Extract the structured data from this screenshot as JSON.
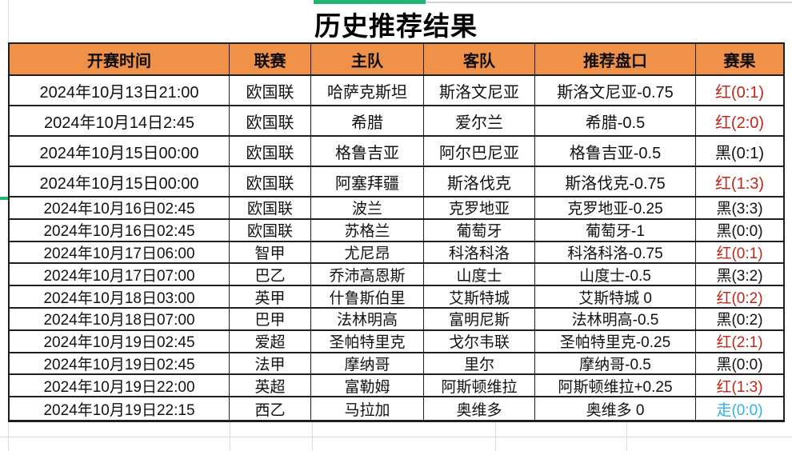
{
  "title": "历史推荐结果",
  "colors": {
    "header_bg": "#ef9148",
    "table_border": "#1f1f1f",
    "result_win_red": "#c0271b",
    "result_lose_black": "#111111",
    "result_push_blue": "#2fb0e6",
    "selection_green": "#22b573",
    "gridline_gray": "#dcdcdc"
  },
  "table": {
    "headers": [
      "开赛时间",
      "联赛",
      "主队",
      "客队",
      "推荐盘口",
      "赛果"
    ],
    "rows": [
      {
        "time": "2024年10月13日21:00",
        "league": "欧国联",
        "home": "哈萨克斯坦",
        "away": "斯洛文尼亚",
        "handicap": "斯洛文尼亚-0.75",
        "result": "红(0:1)",
        "result_color": "#c0271b"
      },
      {
        "time": "2024年10月14日2:45",
        "league": "欧国联",
        "home": "希腊",
        "away": "爱尔兰",
        "handicap": "希腊-0.5",
        "result": "红(2:0)",
        "result_color": "#c0271b"
      },
      {
        "time": "2024年10月15日00:00",
        "league": "欧国联",
        "home": "格鲁吉亚",
        "away": "阿尔巴尼亚",
        "handicap": "格鲁吉亚-0.5",
        "result": "黑(0:1)",
        "result_color": "#111111"
      },
      {
        "time": "2024年10月15日00:00",
        "league": "欧国联",
        "home": "阿塞拜疆",
        "away": "斯洛伐克",
        "handicap": "斯洛伐克-0.75",
        "result": "红(1:3)",
        "result_color": "#c0271b"
      },
      {
        "time": "2024年10月16日02:45",
        "league": "欧国联",
        "home": "波兰",
        "away": "克罗地亚",
        "handicap": "克罗地亚-0.25",
        "result": "黑(3:3)",
        "result_color": "#111111"
      },
      {
        "time": "2024年10月16日02:45",
        "league": "欧国联",
        "home": "苏格兰",
        "away": "葡萄牙",
        "handicap": "葡萄牙-1",
        "result": "黑(0:0)",
        "result_color": "#111111"
      },
      {
        "time": "2024年10月17日06:00",
        "league": "智甲",
        "home": "尤尼昂",
        "away": "科洛科洛",
        "handicap": "科洛科洛-0.75",
        "result": "红(0:1)",
        "result_color": "#c0271b"
      },
      {
        "time": "2024年10月17日07:00",
        "league": "巴乙",
        "home": "乔沛高恩斯",
        "away": "山度士",
        "handicap": "山度士-0.5",
        "result": "黑(3:2)",
        "result_color": "#111111"
      },
      {
        "time": "2024年10月18日03:00",
        "league": "英甲",
        "home": "什鲁斯伯里",
        "away": "艾斯特城",
        "handicap": "艾斯特城 0",
        "result": "红(0:2)",
        "result_color": "#c0271b"
      },
      {
        "time": "2024年10月18日07:00",
        "league": "巴甲",
        "home": "法林明高",
        "away": "富明尼斯",
        "handicap": "法林明高-0.5",
        "result": "黑(0:2)",
        "result_color": "#111111"
      },
      {
        "time": "2024年10月19日02:45",
        "league": "爱超",
        "home": "圣帕特里克",
        "away": "戈尔韦联",
        "handicap": "圣帕特里克-0.25",
        "result": "红(2:1)",
        "result_color": "#c0271b"
      },
      {
        "time": "2024年10月19日02:45",
        "league": "法甲",
        "home": "摩纳哥",
        "away": "里尔",
        "handicap": "摩纳哥-0.5",
        "result": "黑(0:0)",
        "result_color": "#111111"
      },
      {
        "time": "2024年10月19日22:00",
        "league": "英超",
        "home": "富勒姆",
        "away": "阿斯顿维拉",
        "handicap": "阿斯顿维拉+0.25",
        "result": "红(1:3)",
        "result_color": "#c0271b"
      },
      {
        "time": "2024年10月19日22:15",
        "league": "西乙",
        "home": "马拉加",
        "away": "奥维多",
        "handicap": "奥维多 0",
        "result": "走(0:0)",
        "result_color": "#2fb0e6"
      }
    ]
  }
}
